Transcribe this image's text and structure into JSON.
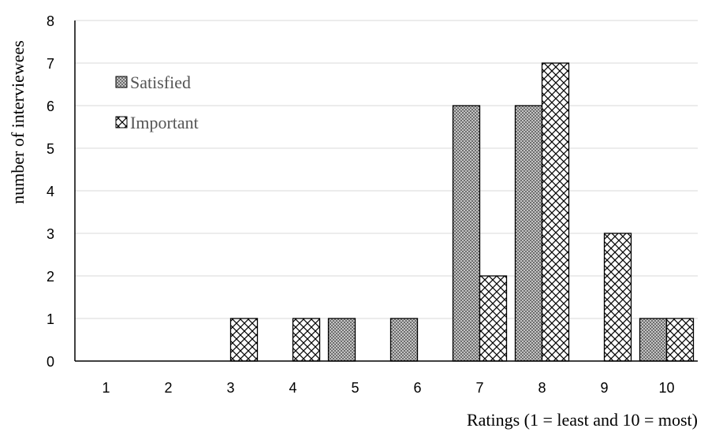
{
  "chart_data": {
    "type": "bar",
    "title": "",
    "xlabel": "Ratings (1 = least and 10 = most)",
    "ylabel": "number of interviewees",
    "categories": [
      "1",
      "2",
      "3",
      "4",
      "5",
      "6",
      "7",
      "8",
      "9",
      "10"
    ],
    "series": [
      {
        "name": "Satisfied",
        "values": [
          0,
          0,
          0,
          0,
          1,
          1,
          6,
          6,
          0,
          1
        ]
      },
      {
        "name": "Important",
        "values": [
          0,
          0,
          1,
          1,
          0,
          0,
          2,
          7,
          3,
          1
        ]
      }
    ],
    "ylim": [
      0,
      8
    ],
    "yticks": [
      0,
      1,
      2,
      3,
      4,
      5,
      6,
      7,
      8
    ],
    "grid": true,
    "legend": {
      "position": "top-left"
    }
  }
}
